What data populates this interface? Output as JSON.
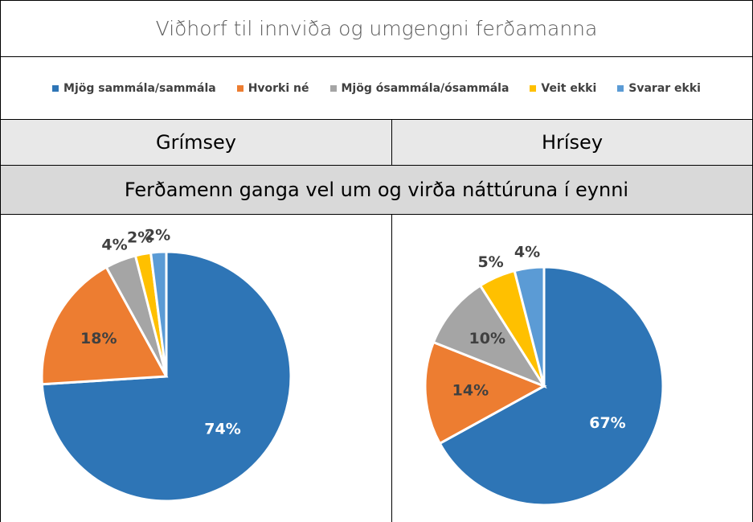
{
  "header": {
    "title": "Viðhorf til innviða og umgengni ferðamanna"
  },
  "question": "Ferðamenn ganga vel um og virða náttúruna í eynni",
  "chart_data": [
    {
      "type": "pie",
      "title": "Grímsey",
      "categories": [
        "Mjög sammála/sammála",
        "Hvorki né",
        "Mjög ósammála/ósammála",
        "Veit ekki",
        "Svarar ekki"
      ],
      "values": [
        74,
        18,
        4,
        2,
        2
      ],
      "value_labels": [
        "74%",
        "18%",
        "4%",
        "2%",
        "2%"
      ],
      "colors": [
        "#2e75b6",
        "#ed7d31",
        "#a5a5a5",
        "#ffc000",
        "#5b9bd5"
      ]
    },
    {
      "type": "pie",
      "title": "Hrísey",
      "categories": [
        "Mjög sammála/sammála",
        "Hvorki né",
        "Mjög ósammála/ósammála",
        "Veit ekki",
        "Svarar ekki"
      ],
      "values": [
        67,
        14,
        10,
        5,
        4
      ],
      "value_labels": [
        "67%",
        "14%",
        "10%",
        "5%",
        "4%"
      ],
      "colors": [
        "#2e75b6",
        "#ed7d31",
        "#a5a5a5",
        "#ffc000",
        "#5b9bd5"
      ]
    }
  ]
}
